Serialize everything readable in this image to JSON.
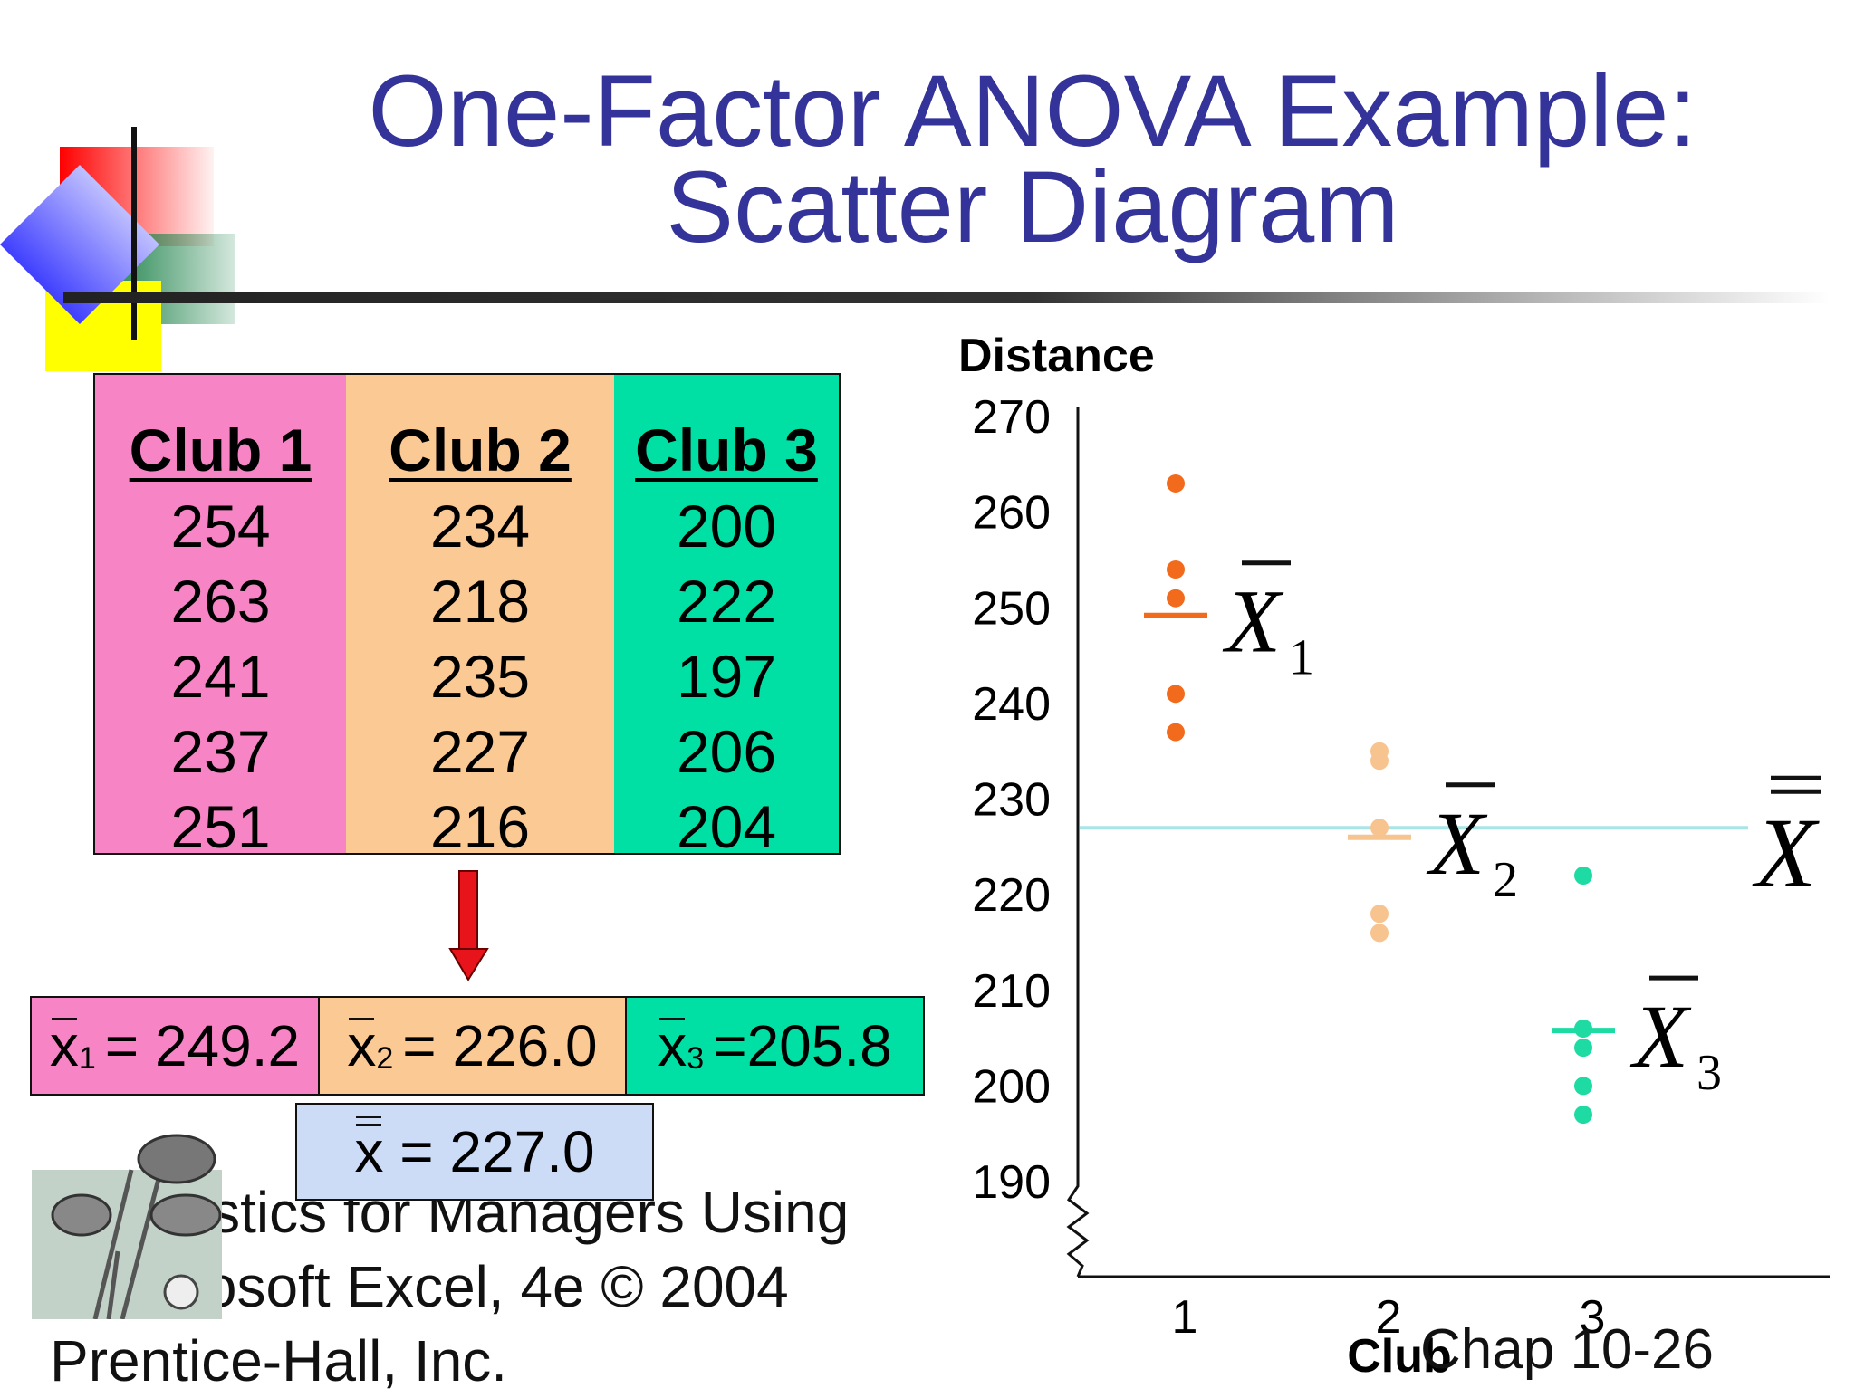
{
  "slide": {
    "title_line1": "One-Factor ANOVA Example:",
    "title_line2": "Scatter Diagram",
    "footer_line1": "Statistics for Managers Using",
    "footer_line2": "Microsoft Excel, 4e © 2004",
    "footer_line3": "Prentice-Hall, Inc.",
    "page_label": "Chap 10-26"
  },
  "table": {
    "columns": [
      {
        "header": "Club 1",
        "values": [
          "254",
          "263",
          "241",
          "237",
          "251"
        ],
        "color": "#f785c6"
      },
      {
        "header": "Club 2",
        "values": [
          "234",
          "218",
          "235",
          "227",
          "216"
        ],
        "color": "#fbc994"
      },
      {
        "header": "Club 3",
        "values": [
          "200",
          "222",
          "197",
          "206",
          "204"
        ],
        "color": "#00e0a4"
      }
    ]
  },
  "means": {
    "items": [
      {
        "symbol": "x",
        "sub": "1",
        "eq": "=",
        "value": "249.2",
        "color": "#f785c6"
      },
      {
        "symbol": "x",
        "sub": "2",
        "eq": "=",
        "value": "226.0",
        "color": "#fbc994"
      },
      {
        "symbol": "x",
        "sub": "3",
        "eq": "=",
        "value": "205.8",
        "color": "#00e0a4"
      }
    ],
    "grand": {
      "symbol": "x",
      "eq": "=",
      "value": "227.0"
    }
  },
  "chart_data": {
    "type": "scatter",
    "ylabel": "Distance",
    "xlabel": "Club",
    "ylim": [
      190,
      270
    ],
    "yticks": [
      270,
      260,
      250,
      240,
      230,
      220,
      210,
      200,
      190
    ],
    "xticks": [
      "1",
      "2",
      "3"
    ],
    "axis_break": true,
    "series": [
      {
        "x": 1,
        "values": [
          254,
          263,
          241,
          237,
          251
        ],
        "mean": 249.2,
        "mean_label": "X",
        "mean_sub": "1",
        "color": "#f26b1d"
      },
      {
        "x": 2,
        "values": [
          234,
          218,
          235,
          227,
          216
        ],
        "mean": 226.0,
        "mean_label": "X",
        "mean_sub": "2",
        "color": "#f7c48f"
      },
      {
        "x": 3,
        "values": [
          200,
          222,
          197,
          206,
          204
        ],
        "mean": 205.8,
        "mean_label": "X",
        "mean_sub": "3",
        "color": "#1ddba3"
      }
    ],
    "grand_mean": {
      "value": 227.0,
      "label": "X",
      "color": "#a8e6e6"
    }
  }
}
